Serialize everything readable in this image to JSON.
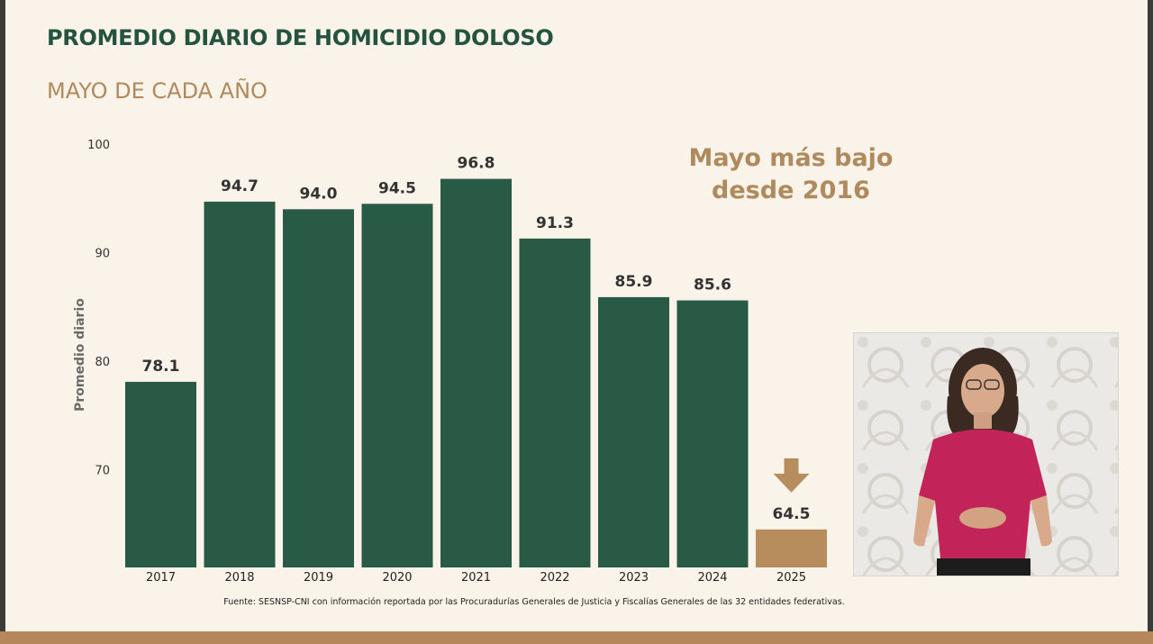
{
  "title": "PROMEDIO DIARIO DE HOMICIDIO DOLOSO",
  "subtitle": "MAYO DE CADA AÑO",
  "callout": {
    "line1": "Mayo más bajo",
    "line2": "desde 2016"
  },
  "source": "Fuente: SESNSP-CNI con información reportada por las Procuradurías Generales de Justicia y Fiscalías Generales de las 32 entidades federativas.",
  "colors": {
    "bar": "#285a45",
    "highlight": "#b88d5d",
    "title": "#24533f",
    "accent": "#b08a5c"
  },
  "chart_data": {
    "type": "bar",
    "categories": [
      "2017",
      "2018",
      "2019",
      "2020",
      "2021",
      "2022",
      "2023",
      "2024",
      "2025"
    ],
    "values": [
      78.1,
      94.7,
      94.0,
      94.5,
      96.8,
      91.3,
      85.9,
      85.6,
      64.5
    ],
    "data_labels": [
      "78.1",
      "94.7",
      "94.0",
      "94.5",
      "96.8",
      "91.3",
      "85.9",
      "85.6",
      "64.5"
    ],
    "title": "PROMEDIO DIARIO DE HOMICIDIO DOLOSO",
    "subtitle": "MAYO DE CADA AÑO",
    "xlabel": "",
    "ylabel": "Promedio diario",
    "ylim": [
      61,
      100
    ],
    "yticks": [
      70,
      80,
      90,
      100
    ],
    "highlight_category": "2025",
    "highlight_marker": "down-arrow",
    "grid": false
  }
}
